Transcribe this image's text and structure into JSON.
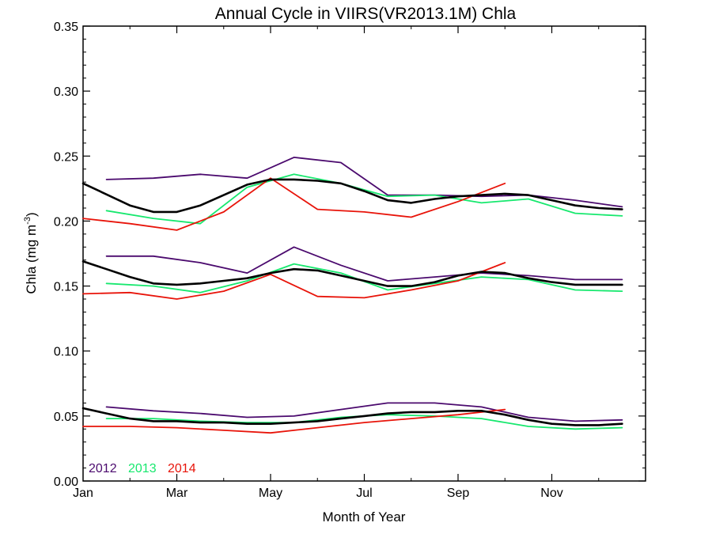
{
  "chart_data": {
    "type": "line",
    "title": "Annual Cycle in VIIRS(VR2013.1M) Chla",
    "xlabel": "Month of Year",
    "ylabel_main": "Chla (mg m",
    "ylabel_sup": "-3",
    "ylabel_close": ")",
    "xlim": [
      0,
      12
    ],
    "ylim": [
      0,
      0.35
    ],
    "x_ticks": [
      {
        "value": 0,
        "label": "Jan"
      },
      {
        "value": 2,
        "label": "Mar"
      },
      {
        "value": 4,
        "label": "May"
      },
      {
        "value": 6,
        "label": "Jul"
      },
      {
        "value": 8,
        "label": "Sep"
      },
      {
        "value": 10,
        "label": "Nov"
      }
    ],
    "y_ticks": [
      {
        "value": 0.0,
        "label": "0.00"
      },
      {
        "value": 0.05,
        "label": "0.05"
      },
      {
        "value": 0.1,
        "label": "0.10"
      },
      {
        "value": 0.15,
        "label": "0.15"
      },
      {
        "value": 0.2,
        "label": "0.20"
      },
      {
        "value": 0.25,
        "label": "0.25"
      },
      {
        "value": 0.3,
        "label": "0.30"
      },
      {
        "value": 0.35,
        "label": "0.35"
      }
    ],
    "grid": false,
    "legend_placement": "bottom-left",
    "legend": [
      {
        "label": "2012",
        "color": "#4b0a6e"
      },
      {
        "label": "2013",
        "color": "#17e86e"
      },
      {
        "label": "2014",
        "color": "#e8140a"
      }
    ],
    "series": [
      {
        "group": "upper",
        "year": "2012",
        "color": "#4b0a6e",
        "x": [
          0.5,
          1.5,
          2.5,
          3.5,
          4.5,
          5.5,
          6.5,
          7.5,
          8.5,
          9.5,
          10.5,
          11.5
        ],
        "y": [
          0.232,
          0.233,
          0.236,
          0.233,
          0.249,
          0.245,
          0.22,
          0.22,
          0.219,
          0.22,
          0.216,
          0.211
        ]
      },
      {
        "group": "upper",
        "year": "2013",
        "color": "#17e86e",
        "x": [
          0.5,
          1.5,
          2.5,
          3.5,
          4.5,
          5.5,
          6.5,
          7.5,
          8.5,
          9.5,
          10.5,
          11.5
        ],
        "y": [
          0.208,
          0.202,
          0.198,
          0.226,
          0.236,
          0.229,
          0.219,
          0.22,
          0.214,
          0.217,
          0.206,
          0.204
        ]
      },
      {
        "group": "upper",
        "year": "2014",
        "color": "#e8140a",
        "x": [
          0,
          1,
          2,
          3,
          4,
          5,
          6,
          7,
          8,
          9
        ],
        "y": [
          0.202,
          0.198,
          0.193,
          0.207,
          0.233,
          0.209,
          0.207,
          0.203,
          0.215,
          0.229
        ]
      },
      {
        "group": "upper",
        "year": "mean",
        "color": "#000000",
        "x": [
          0,
          1,
          1.5,
          2,
          2.5,
          3,
          3.5,
          4,
          4.5,
          5,
          5.5,
          6,
          6.5,
          7,
          7.5,
          8,
          8.5,
          9,
          9.5,
          10,
          10.5,
          11,
          11.5
        ],
        "y": [
          0.229,
          0.212,
          0.207,
          0.207,
          0.212,
          0.22,
          0.228,
          0.232,
          0.232,
          0.231,
          0.229,
          0.223,
          0.216,
          0.214,
          0.217,
          0.219,
          0.22,
          0.221,
          0.22,
          0.216,
          0.212,
          0.21,
          0.209
        ]
      },
      {
        "group": "middle",
        "year": "2012",
        "color": "#4b0a6e",
        "x": [
          0.5,
          1.5,
          2.5,
          3.5,
          4.5,
          5.5,
          6.5,
          7.5,
          8.5,
          9.5,
          10.5,
          11.5
        ],
        "y": [
          0.173,
          0.173,
          0.168,
          0.16,
          0.18,
          0.166,
          0.154,
          0.157,
          0.16,
          0.158,
          0.155,
          0.155
        ]
      },
      {
        "group": "middle",
        "year": "2013",
        "color": "#17e86e",
        "x": [
          0.5,
          1.5,
          2.5,
          3.5,
          4.5,
          5.5,
          6.5,
          7.5,
          8.5,
          9.5,
          10.5,
          11.5
        ],
        "y": [
          0.152,
          0.15,
          0.145,
          0.154,
          0.167,
          0.16,
          0.147,
          0.152,
          0.157,
          0.155,
          0.147,
          0.146
        ]
      },
      {
        "group": "middle",
        "year": "2014",
        "color": "#e8140a",
        "x": [
          0,
          1,
          2,
          3,
          4,
          5,
          6,
          7,
          8,
          9
        ],
        "y": [
          0.144,
          0.145,
          0.14,
          0.146,
          0.159,
          0.142,
          0.141,
          0.147,
          0.154,
          0.168
        ]
      },
      {
        "group": "middle",
        "year": "mean",
        "color": "#000000",
        "x": [
          0,
          0.5,
          1,
          1.5,
          2,
          2.5,
          3,
          3.5,
          4,
          4.5,
          5,
          5.5,
          6,
          6.5,
          7,
          7.5,
          8,
          8.5,
          9,
          9.5,
          10,
          10.5,
          11,
          11.5
        ],
        "y": [
          0.169,
          0.163,
          0.157,
          0.152,
          0.151,
          0.152,
          0.154,
          0.156,
          0.16,
          0.163,
          0.162,
          0.158,
          0.154,
          0.15,
          0.15,
          0.153,
          0.158,
          0.161,
          0.16,
          0.156,
          0.153,
          0.151,
          0.151,
          0.151
        ]
      },
      {
        "group": "lower",
        "year": "2012",
        "color": "#4b0a6e",
        "x": [
          0.5,
          1.5,
          2.5,
          3.5,
          4.5,
          5.5,
          6.5,
          7.5,
          8.5,
          9.5,
          10.5,
          11.5
        ],
        "y": [
          0.057,
          0.054,
          0.052,
          0.049,
          0.05,
          0.055,
          0.06,
          0.06,
          0.057,
          0.049,
          0.046,
          0.047
        ]
      },
      {
        "group": "lower",
        "year": "2013",
        "color": "#17e86e",
        "x": [
          0.5,
          1.5,
          2.5,
          3.5,
          4.5,
          5.5,
          6.5,
          7.5,
          8.5,
          9.5,
          10.5,
          11.5
        ],
        "y": [
          0.048,
          0.048,
          0.046,
          0.045,
          0.045,
          0.049,
          0.051,
          0.05,
          0.048,
          0.042,
          0.04,
          0.041
        ]
      },
      {
        "group": "lower",
        "year": "2014",
        "color": "#e8140a",
        "x": [
          0,
          1,
          2,
          3,
          4,
          5,
          6,
          7,
          8,
          9
        ],
        "y": [
          0.042,
          0.042,
          0.041,
          0.039,
          0.037,
          0.041,
          0.045,
          0.048,
          0.051,
          0.055
        ]
      },
      {
        "group": "lower",
        "year": "mean",
        "color": "#000000",
        "x": [
          0,
          0.5,
          1,
          1.5,
          2,
          2.5,
          3,
          3.5,
          4,
          4.5,
          5,
          5.5,
          6,
          6.5,
          7,
          7.5,
          8,
          8.5,
          9,
          9.5,
          10,
          10.5,
          11,
          11.5
        ],
        "y": [
          0.056,
          0.052,
          0.048,
          0.046,
          0.046,
          0.045,
          0.045,
          0.044,
          0.044,
          0.045,
          0.046,
          0.048,
          0.05,
          0.052,
          0.053,
          0.053,
          0.054,
          0.054,
          0.051,
          0.047,
          0.044,
          0.043,
          0.043,
          0.044
        ]
      }
    ]
  }
}
